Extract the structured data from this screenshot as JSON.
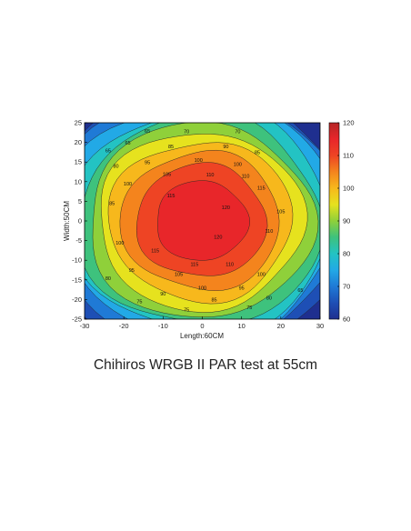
{
  "caption": "Chihiros WRGB II PAR test at 55cm",
  "chart_data": {
    "type": "heatmap",
    "subtype": "filled-contour",
    "title": "",
    "xlabel": "Length:60CM",
    "ylabel": "Width:50CM",
    "xlim": [
      -30,
      30
    ],
    "ylim": [
      -25,
      25
    ],
    "xticks": [
      -30,
      -20,
      -10,
      0,
      10,
      20,
      30
    ],
    "yticks": [
      -25,
      -20,
      -15,
      -10,
      -5,
      0,
      5,
      10,
      15,
      20,
      25
    ],
    "colorbar": {
      "range": [
        60,
        120
      ],
      "ticks": [
        60,
        70,
        80,
        90,
        100,
        110,
        120
      ]
    },
    "contour_levels": [
      65,
      70,
      75,
      80,
      85,
      90,
      95,
      100,
      105,
      110,
      115,
      120
    ],
    "peak": {
      "x": 0,
      "y": 0,
      "value": 120
    },
    "corner_values": {
      "top_left": 60,
      "top_right": 60,
      "bottom_left": 60,
      "bottom_right": 60
    },
    "level_colors": {
      "60": "#1f2f8f",
      "65": "#1e4fb5",
      "70": "#1f7ad6",
      "75": "#22a9e6",
      "80": "#23c3c3",
      "85": "#3ec27d",
      "90": "#8fd03a",
      "95": "#e6e21e",
      "100": "#f7b81c",
      "105": "#f4841d",
      "110": "#ee4424",
      "115": "#e8262a",
      "120": "#b52525"
    },
    "contour_labels": [
      {
        "x": -14,
        "y": 22.5,
        "v": 65
      },
      {
        "x": -4,
        "y": 22.3,
        "v": 70
      },
      {
        "x": 9,
        "y": 22.3,
        "v": 70
      },
      {
        "x": -19,
        "y": 19.5,
        "v": 65
      },
      {
        "x": -8,
        "y": 18.5,
        "v": 85
      },
      {
        "x": 6,
        "y": 18.5,
        "v": 90
      },
      {
        "x": -24,
        "y": 17.5,
        "v": 65
      },
      {
        "x": -22,
        "y": 13.5,
        "v": 80
      },
      {
        "x": 14,
        "y": 17,
        "v": 85
      },
      {
        "x": -14,
        "y": 14.5,
        "v": 95
      },
      {
        "x": -1,
        "y": 15,
        "v": 100
      },
      {
        "x": 9,
        "y": 14,
        "v": 100
      },
      {
        "x": -9,
        "y": 11.5,
        "v": 105
      },
      {
        "x": 2,
        "y": 11.3,
        "v": 110
      },
      {
        "x": 11,
        "y": 11,
        "v": 110
      },
      {
        "x": -19,
        "y": 9,
        "v": 100
      },
      {
        "x": -8,
        "y": 6,
        "v": 115
      },
      {
        "x": 15,
        "y": 8,
        "v": 115
      },
      {
        "x": 20,
        "y": 2,
        "v": 105
      },
      {
        "x": -23,
        "y": 4,
        "v": 85
      },
      {
        "x": 6,
        "y": 3,
        "v": 120
      },
      {
        "x": 4,
        "y": -4.5,
        "v": 120
      },
      {
        "x": 17,
        "y": -3,
        "v": 110
      },
      {
        "x": -21,
        "y": -6,
        "v": 100
      },
      {
        "x": -12,
        "y": -8,
        "v": 115
      },
      {
        "x": -2,
        "y": -11.5,
        "v": 115
      },
      {
        "x": 7,
        "y": -11.5,
        "v": 110
      },
      {
        "x": -18,
        "y": -13,
        "v": 95
      },
      {
        "x": -6,
        "y": -14,
        "v": 105
      },
      {
        "x": 15,
        "y": -14,
        "v": 100
      },
      {
        "x": -24,
        "y": -15,
        "v": 80
      },
      {
        "x": 0,
        "y": -17.5,
        "v": 100
      },
      {
        "x": 10,
        "y": -17.5,
        "v": 95
      },
      {
        "x": -10,
        "y": -19,
        "v": 90
      },
      {
        "x": 17,
        "y": -20,
        "v": 80
      },
      {
        "x": -16,
        "y": -21,
        "v": 75
      },
      {
        "x": 3,
        "y": -20.5,
        "v": 85
      },
      {
        "x": -4,
        "y": -23,
        "v": 75
      },
      {
        "x": 12,
        "y": -22.5,
        "v": 75
      },
      {
        "x": 25,
        "y": -18,
        "v": 65
      }
    ]
  }
}
